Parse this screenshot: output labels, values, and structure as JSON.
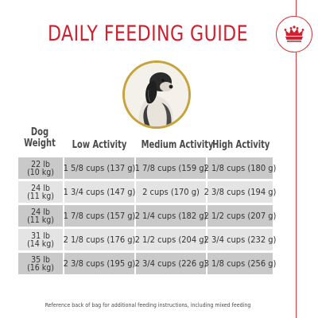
{
  "title": "DAILY FEEDING GUIDE",
  "headers": {
    "weight_line1": "Dog",
    "weight_line2": "Weight",
    "low": "Low Activity",
    "medium": "Medium Activity",
    "high": "High Activity"
  },
  "rows": [
    {
      "lb": "22 lb",
      "kg": "(10 kg)",
      "low": "1 5/8 cups (137 g)",
      "medium": "1 7/8 cups (159 g)",
      "high": "2 1/8 cups (180 g)"
    },
    {
      "lb": "24 lb",
      "kg": "(11 kg)",
      "low": "1 3/4 cups (147 g)",
      "medium": "2 cups (170 g)",
      "high": "2 3/8 cups (194 g)"
    },
    {
      "lb": "24 lb",
      "kg": "(11 kg)",
      "low": "1 7/8 cups (157 g)",
      "medium": "2 1/4 cups (182 g)",
      "high": "2 1/2 cups (207 g)"
    },
    {
      "lb": "31 lb",
      "kg": "(14 kg)",
      "low": "2 1/8 cups (176 g)",
      "medium": "2 1/2 cups (204 g)",
      "high": "2 3/4 cups (232 g)"
    },
    {
      "lb": "35 lb",
      "kg": "(16 kg)",
      "low": "2 3/8 cups (195 g)",
      "medium": "2 3/4 cups (226 g)",
      "high": "3 1/8 cups (256 g)"
    }
  ],
  "footnote": "Reference back of bag for additional feeding instructions, including mixed feeding",
  "colors": {
    "accent_red": "#d11f2e",
    "ring_gold": "#c8a23a",
    "row_dark": "#c9c9c9",
    "row_light": "#e4e4e4"
  },
  "icons": {
    "brand": "crown-icon"
  }
}
